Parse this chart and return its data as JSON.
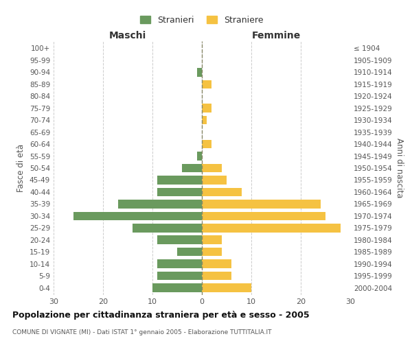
{
  "age_groups": [
    "100+",
    "95-99",
    "90-94",
    "85-89",
    "80-84",
    "75-79",
    "70-74",
    "65-69",
    "60-64",
    "55-59",
    "50-54",
    "45-49",
    "40-44",
    "35-39",
    "30-34",
    "25-29",
    "20-24",
    "15-19",
    "10-14",
    "5-9",
    "0-4"
  ],
  "birth_years": [
    "≤ 1904",
    "1905-1909",
    "1910-1914",
    "1915-1919",
    "1920-1924",
    "1925-1929",
    "1930-1934",
    "1935-1939",
    "1940-1944",
    "1945-1949",
    "1950-1954",
    "1955-1959",
    "1960-1964",
    "1965-1969",
    "1970-1974",
    "1975-1979",
    "1980-1984",
    "1985-1989",
    "1990-1994",
    "1995-1999",
    "2000-2004"
  ],
  "maschi": [
    0,
    0,
    -1,
    0,
    0,
    0,
    0,
    0,
    0,
    -1,
    -4,
    -9,
    -9,
    -17,
    -26,
    -14,
    -9,
    -5,
    -9,
    -9,
    -10
  ],
  "femmine": [
    0,
    0,
    0,
    2,
    0,
    2,
    1,
    0,
    2,
    0,
    4,
    5,
    8,
    24,
    25,
    28,
    4,
    4,
    6,
    6,
    10
  ],
  "color_maschi": "#6a9a5e",
  "color_femmine": "#f5c242",
  "title": "Popolazione per cittadinanza straniera per età e sesso - 2005",
  "subtitle": "COMUNE DI VIGNATE (MI) - Dati ISTAT 1° gennaio 2005 - Elaborazione TUTTITALIA.IT",
  "label_maschi": "Stranieri",
  "label_femmine": "Straniere",
  "xlabel_left": "Maschi",
  "xlabel_right": "Femmine",
  "ylabel_left": "Fasce di età",
  "ylabel_right": "Anni di nascita",
  "xlim": 30,
  "background_color": "#ffffff",
  "grid_color": "#cccccc"
}
